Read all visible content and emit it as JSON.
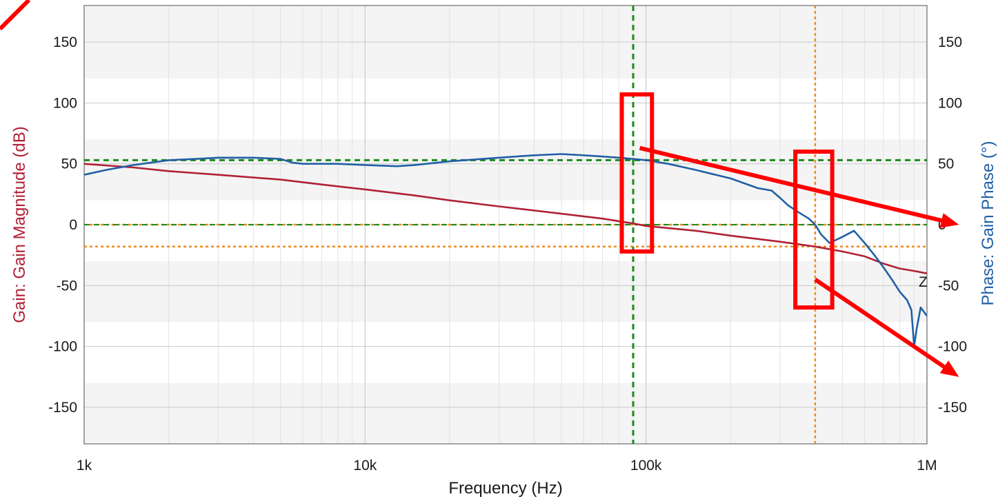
{
  "colors": {
    "gain": "#b02035",
    "phase": "#1f5fa5",
    "green_marker": "#1a8a1a",
    "orange_marker": "#ef8a1a",
    "annotation": "#ff0000",
    "grid_major": "#c8c8c8",
    "grid_minor": "#e2e2e2",
    "band": "#f4f4f4"
  },
  "chart_data": {
    "type": "line",
    "xlabel": "Frequency (Hz)",
    "ylabel_left": "Gain: Gain Magnitude (dB)",
    "ylabel_right": "Phase: Gain Phase (°)",
    "x_scale": "log",
    "xlim": [
      1000,
      1000000
    ],
    "ylim": [
      -180,
      180
    ],
    "x_ticks": [
      {
        "value": 1000,
        "label": "1k"
      },
      {
        "value": 10000,
        "label": "10k"
      },
      {
        "value": 100000,
        "label": "100k"
      },
      {
        "value": 1000000,
        "label": "1M"
      }
    ],
    "y_ticks_left": [
      {
        "value": 150,
        "label": "150"
      },
      {
        "value": 100,
        "label": "100"
      },
      {
        "value": 50,
        "label": "50"
      },
      {
        "value": 0,
        "label": "0"
      },
      {
        "value": -50,
        "label": "-50"
      },
      {
        "value": -100,
        "label": "-100"
      },
      {
        "value": -150,
        "label": "-150"
      }
    ],
    "y_ticks_right": [
      {
        "value": 150,
        "label": "150"
      },
      {
        "value": 100,
        "label": "100"
      },
      {
        "value": 50,
        "label": "50"
      },
      {
        "value": 0,
        "label": "0"
      },
      {
        "value": -50,
        "label": "-50"
      },
      {
        "value": -100,
        "label": "-100"
      },
      {
        "value": -150,
        "label": "-150"
      }
    ],
    "grid": true,
    "series": [
      {
        "key": "gain",
        "x": [
          1000,
          1500,
          2000,
          3000,
          5000,
          7000,
          10000,
          15000,
          20000,
          30000,
          50000,
          70000,
          90000,
          100000,
          150000,
          200000,
          300000,
          400000,
          500000,
          600000,
          700000,
          800000,
          900000,
          1000000
        ],
        "y": [
          50,
          47,
          44,
          41,
          37,
          33,
          29,
          24,
          20,
          15,
          9,
          5,
          1,
          -1,
          -5,
          -9,
          -14,
          -18,
          -22,
          -26,
          -32,
          -36,
          -38,
          -40
        ]
      },
      {
        "key": "phase",
        "x": [
          1000,
          1200,
          1500,
          2000,
          2500,
          3000,
          4000,
          5000,
          5500,
          6000,
          8000,
          10000,
          13000,
          15000,
          20000,
          30000,
          40000,
          50000,
          60000,
          70000,
          80000,
          90000,
          100000,
          120000,
          150000,
          200000,
          250000,
          280000,
          300000,
          320000,
          350000,
          380000,
          400000,
          420000,
          450000,
          500000,
          550000,
          600000,
          650000,
          700000,
          750000,
          800000,
          850000,
          880000,
          900000,
          920000,
          950000,
          1000000
        ],
        "y": [
          41,
          45,
          49,
          53,
          54,
          55,
          55,
          54,
          51,
          50,
          50,
          49,
          48,
          49,
          52,
          55,
          57,
          58,
          57,
          56,
          55,
          54,
          53,
          50,
          45,
          38,
          30,
          28,
          22,
          16,
          10,
          5,
          0,
          -8,
          -15,
          -10,
          -5,
          -15,
          -25,
          -35,
          -45,
          -55,
          -62,
          -70,
          -100,
          -85,
          -68,
          -75
        ]
      }
    ],
    "markers": {
      "green_vertical_x": 90000,
      "green_horizontal_y": 53,
      "green_zero_y": 0,
      "orange_vertical_x": 400000,
      "orange_horizontal_y": -18,
      "orange_zero_y": 0
    },
    "annotations": {
      "box1": {
        "x": [
          82000,
          105000
        ],
        "y": [
          -22,
          107
        ]
      },
      "box2": {
        "x": [
          340000,
          460000
        ],
        "y": [
          -68,
          60
        ]
      },
      "arrow1": {
        "from": [
          95000,
          63
        ],
        "to": [
          1300000,
          0
        ]
      },
      "arrow2": {
        "from": [
          400000,
          -45
        ],
        "to": [
          1300000,
          -125
        ]
      }
    },
    "end_label": {
      "text": "Z",
      "x": 1000000,
      "y": -43
    }
  }
}
